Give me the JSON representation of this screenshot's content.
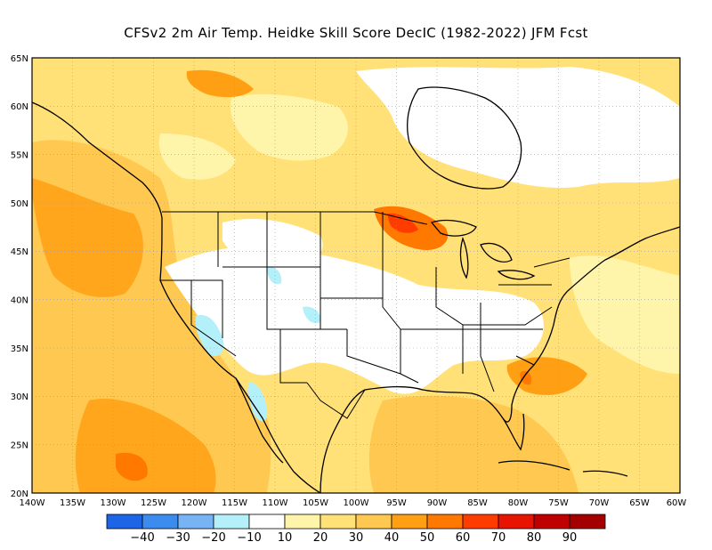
{
  "title": "CFSv2  2m Air Temp. Heidke Skill Score DecIC (1982-2022) JFM Fcst",
  "map": {
    "lon_range": [
      -140,
      -60
    ],
    "lat_range": [
      20,
      65
    ],
    "lat_ticks": [
      "65N",
      "60N",
      "55N",
      "50N",
      "45N",
      "40N",
      "35N",
      "30N",
      "25N",
      "20N"
    ],
    "lon_ticks": [
      "140W",
      "135W",
      "130W",
      "125W",
      "120W",
      "115W",
      "110W",
      "105W",
      "100W",
      "95W",
      "90W",
      "85W",
      "80W",
      "75W",
      "70W",
      "65W",
      "60W"
    ],
    "grid": "dotted"
  },
  "colorbar": {
    "colors": [
      "#1e64e6",
      "#3c8cf0",
      "#78b4f5",
      "#b4f0fa",
      "#ffffff",
      "#fff5aa",
      "#ffe178",
      "#ffc850",
      "#ffa014",
      "#ff7800",
      "#ff3c00",
      "#e61400",
      "#be0000",
      "#a50000"
    ],
    "labels": [
      "-40",
      "-30",
      "-20",
      "-10",
      "10",
      "20",
      "30",
      "40",
      "50",
      "60",
      "70",
      "80",
      "90"
    ]
  }
}
